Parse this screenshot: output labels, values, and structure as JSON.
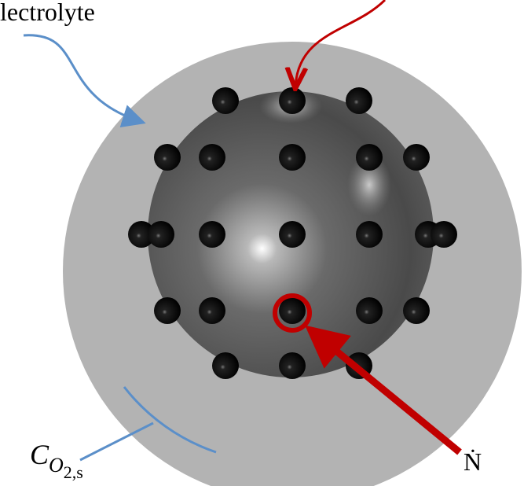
{
  "labels": {
    "electrolyte": "lectrolyte",
    "flux": "Ṅ",
    "concentration": {
      "symbol": "C",
      "subscript": "O",
      "sub_subscript": "2,s"
    }
  }
}
